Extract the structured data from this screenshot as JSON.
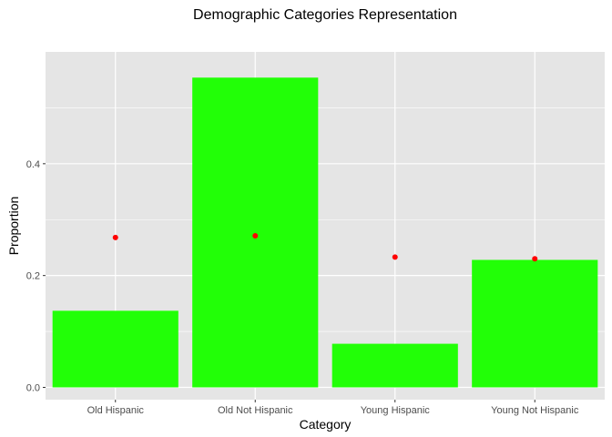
{
  "chart_data": {
    "type": "bar",
    "title": "Demographic Categories Representation",
    "xlabel": "Category",
    "ylabel": "Proportion",
    "categories": [
      "Old Hispanic",
      "Old Not Hispanic",
      "Young Hispanic",
      "Young Not Hispanic"
    ],
    "series": [
      {
        "type": "bar",
        "values": [
          0.137,
          0.554,
          0.078,
          0.228
        ],
        "color": "#22ff07"
      },
      {
        "type": "point",
        "values": [
          0.268,
          0.271,
          0.233,
          0.23
        ],
        "color": "#ff0000"
      }
    ],
    "ylim": [
      -0.022,
      0.6
    ],
    "yticks": [
      0.0,
      0.2,
      0.4
    ],
    "ytick_labels": [
      "0.0",
      "0.2",
      "0.4"
    ],
    "grid": true,
    "panel_background": "#e5e5e5",
    "grid_color": "#ffffff"
  }
}
